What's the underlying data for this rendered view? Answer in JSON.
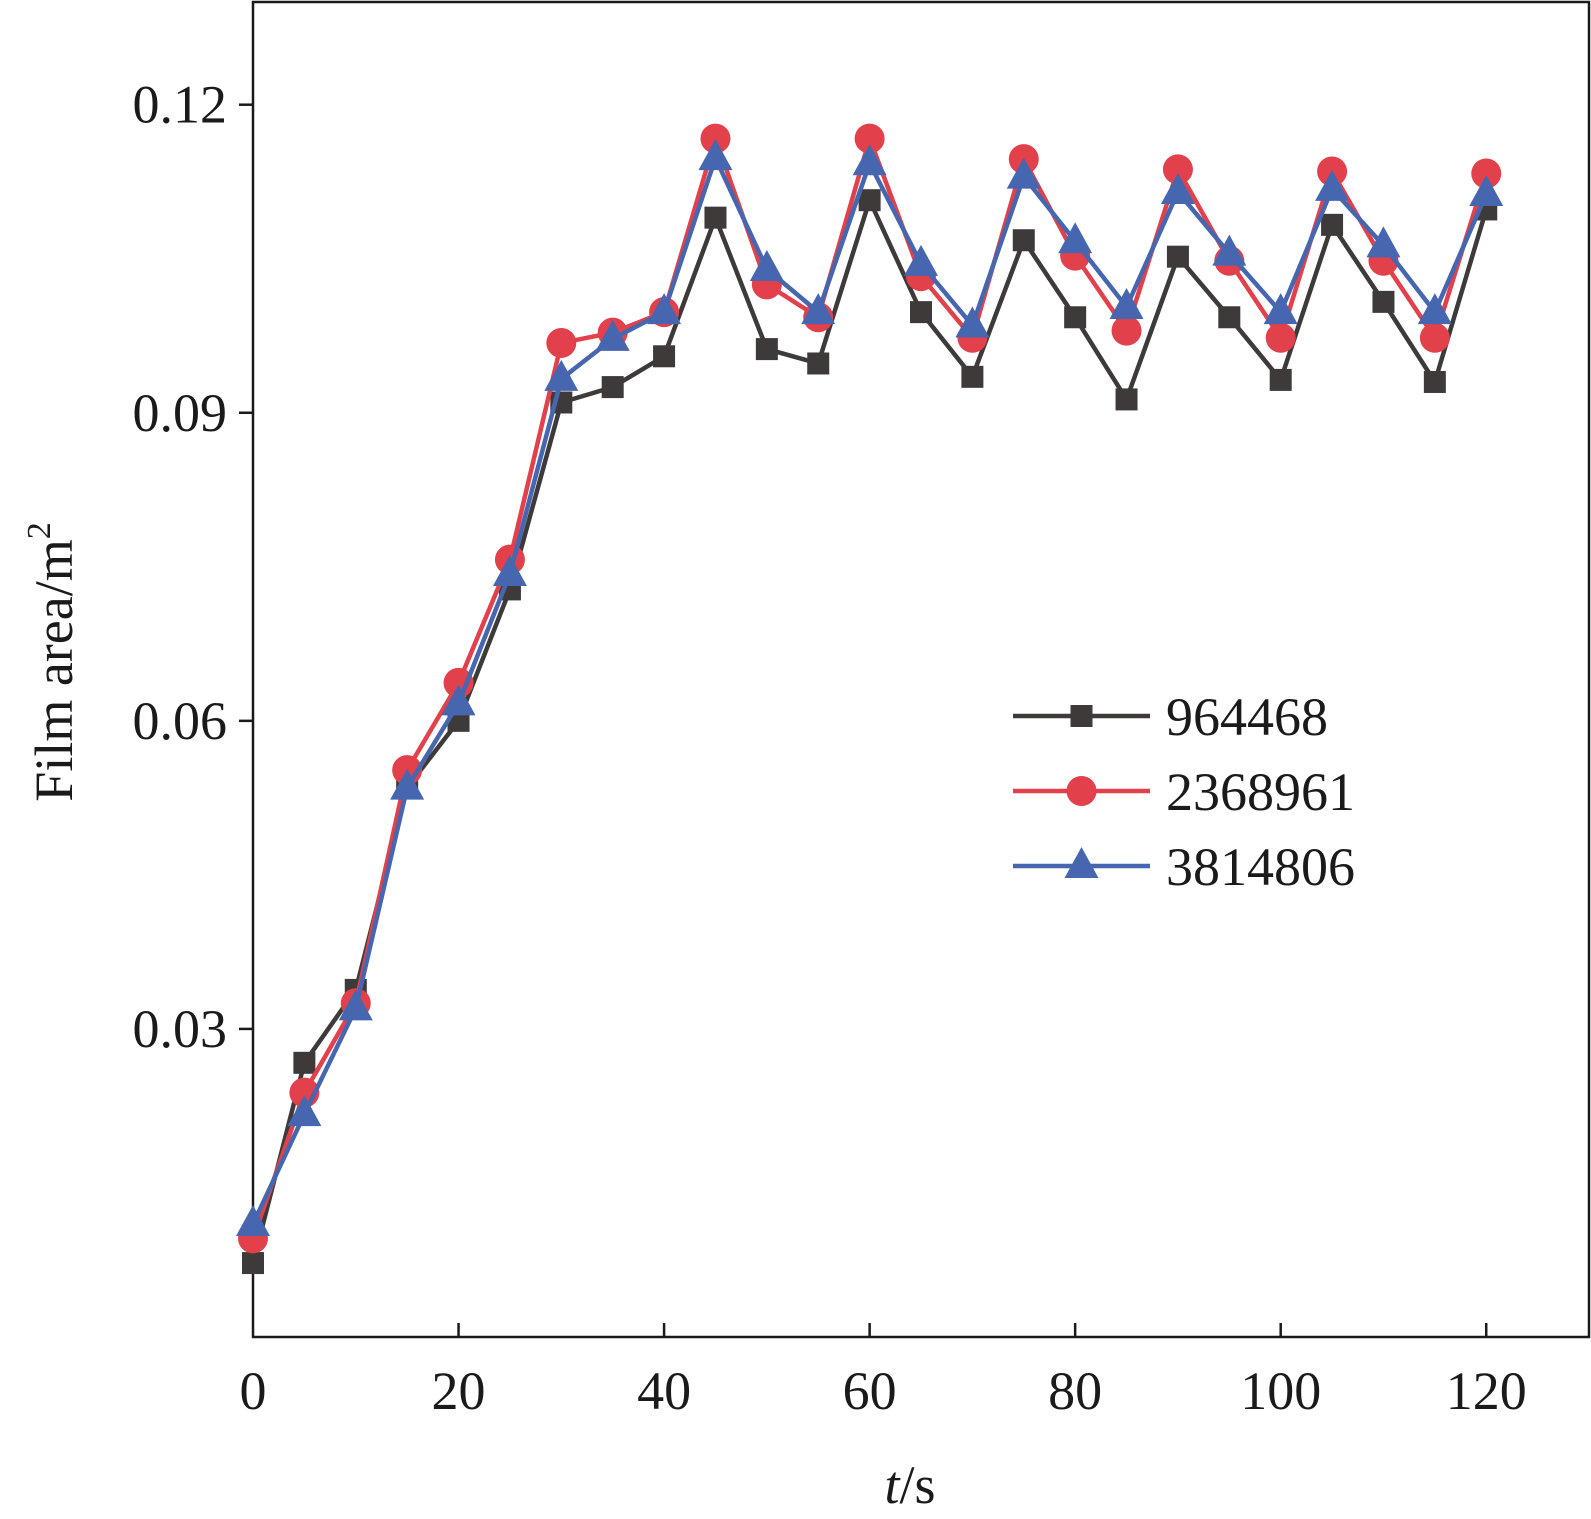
{
  "chart_data": {
    "type": "line",
    "title": "",
    "xlabel_italic": "t",
    "xlabel_rest": "/s",
    "ylabel": "Film area/m",
    "ylabel_sup": "2",
    "xlim": [
      0,
      130
    ],
    "ylim": [
      0.0,
      0.13
    ],
    "xticks": [
      0,
      20,
      40,
      60,
      80,
      100,
      120
    ],
    "xtick_labels": [
      "0",
      "20",
      "40",
      "60",
      "80",
      "100",
      "120"
    ],
    "yticks": [
      0.03,
      0.06,
      0.09,
      0.12
    ],
    "ytick_labels": [
      "0.03",
      "0.06",
      "0.09",
      "0.12"
    ],
    "grid": false,
    "legend_position": "right-middle",
    "x": [
      0,
      5,
      10,
      15,
      20,
      25,
      30,
      35,
      40,
      45,
      50,
      55,
      60,
      65,
      70,
      75,
      80,
      85,
      90,
      95,
      100,
      105,
      110,
      115,
      120
    ],
    "series": [
      {
        "name": "964468",
        "color": "#3f3a3a",
        "marker": "square",
        "values": [
          0.0072,
          0.0267,
          0.0338,
          0.0535,
          0.06,
          0.0728,
          0.091,
          0.0925,
          0.0955,
          0.109,
          0.0962,
          0.0948,
          0.1107,
          0.0998,
          0.0935,
          0.1068,
          0.0993,
          0.0913,
          0.1052,
          0.0993,
          0.0932,
          0.1083,
          0.1008,
          0.093,
          0.1098
        ]
      },
      {
        "name": "2368961",
        "color": "#e2404a",
        "marker": "circle",
        "values": [
          0.0096,
          0.0238,
          0.0325,
          0.0552,
          0.0637,
          0.0757,
          0.0968,
          0.0978,
          0.0998,
          0.1167,
          0.1025,
          0.0993,
          0.1167,
          0.1033,
          0.0973,
          0.1147,
          0.1053,
          0.098,
          0.1137,
          0.1048,
          0.0973,
          0.1135,
          0.1048,
          0.0973,
          0.1133
        ]
      },
      {
        "name": "3814806",
        "color": "#4666b0",
        "marker": "triangle",
        "values": [
          0.011,
          0.0217,
          0.032,
          0.0535,
          0.0617,
          0.0743,
          0.0933,
          0.0972,
          0.0998,
          0.1148,
          0.104,
          0.0998,
          0.1143,
          0.1045,
          0.0985,
          0.113,
          0.1067,
          0.1003,
          0.1115,
          0.1055,
          0.0998,
          0.1118,
          0.1063,
          0.0998,
          0.1113
        ]
      }
    ]
  }
}
